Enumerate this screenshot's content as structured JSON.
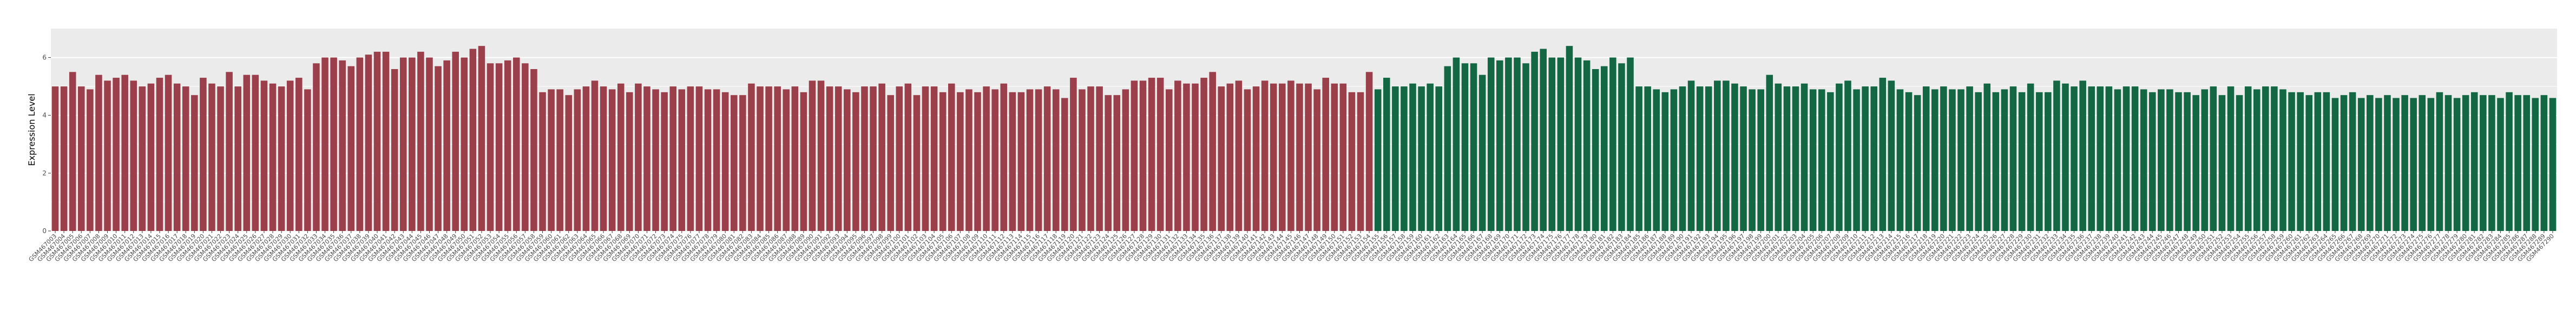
{
  "chart_data": {
    "type": "bar",
    "xlabel": "",
    "ylabel": "Expression Level",
    "ylim": [
      0,
      7
    ],
    "yticks": [
      0,
      2,
      4,
      6
    ],
    "grid": true,
    "legend": "none",
    "categories": [
      "GSM467003",
      "GSM467004",
      "GSM467005",
      "GSM467006",
      "GSM467007",
      "GSM467008",
      "GSM467009",
      "GSM467010",
      "GSM467011",
      "GSM467012",
      "GSM467013",
      "GSM467014",
      "GSM467015",
      "GSM467016",
      "GSM467017",
      "GSM467018",
      "GSM467019",
      "GSM467020",
      "GSM467021",
      "GSM467022",
      "GSM467023",
      "GSM467024",
      "GSM467025",
      "GSM467026",
      "GSM467027",
      "GSM467028",
      "GSM467029",
      "GSM467030",
      "GSM467031",
      "GSM467032",
      "GSM467033",
      "GSM467034",
      "GSM467035",
      "GSM467036",
      "GSM467037",
      "GSM467038",
      "GSM467039",
      "GSM467040",
      "GSM467041",
      "GSM467042",
      "GSM467043",
      "GSM467044",
      "GSM467045",
      "GSM467046",
      "GSM467047",
      "GSM467048",
      "GSM467049",
      "GSM467050",
      "GSM467051",
      "GSM467052",
      "GSM467053",
      "GSM467054",
      "GSM467055",
      "GSM467056",
      "GSM467057",
      "GSM467058",
      "GSM467059",
      "GSM467060",
      "GSM467061",
      "GSM467062",
      "GSM467063",
      "GSM467064",
      "GSM467065",
      "GSM467066",
      "GSM467067",
      "GSM467068",
      "GSM467069",
      "GSM467070",
      "GSM467071",
      "GSM467072",
      "GSM467073",
      "GSM467074",
      "GSM467075",
      "GSM467076",
      "GSM467077",
      "GSM467078",
      "GSM467079",
      "GSM467080",
      "GSM467081",
      "GSM467082",
      "GSM467083",
      "GSM467084",
      "GSM467085",
      "GSM467086",
      "GSM467087",
      "GSM467088",
      "GSM467089",
      "GSM467090",
      "GSM467091",
      "GSM467092",
      "GSM467093",
      "GSM467094",
      "GSM467095",
      "GSM467096",
      "GSM467097",
      "GSM467098",
      "GSM467099",
      "GSM467100",
      "GSM467101",
      "GSM467102",
      "GSM467103",
      "GSM467104",
      "GSM467105",
      "GSM467106",
      "GSM467107",
      "GSM467108",
      "GSM467109",
      "GSM467110",
      "GSM467111",
      "GSM467112",
      "GSM467113",
      "GSM467114",
      "GSM467115",
      "GSM467116",
      "GSM467117",
      "GSM467118",
      "GSM467119",
      "GSM467120",
      "GSM467121",
      "GSM467122",
      "GSM467123",
      "GSM467124",
      "GSM467125",
      "GSM467126",
      "GSM467127",
      "GSM467128",
      "GSM467129",
      "GSM467130",
      "GSM467131",
      "GSM467132",
      "GSM467133",
      "GSM467134",
      "GSM467135",
      "GSM467136",
      "GSM467137",
      "GSM467138",
      "GSM467139",
      "GSM467140",
      "GSM467141",
      "GSM467142",
      "GSM467143",
      "GSM467144",
      "GSM467145",
      "GSM467146",
      "GSM467147",
      "GSM467148",
      "GSM467149",
      "GSM467150",
      "GSM467151",
      "GSM467152",
      "GSM467153",
      "GSM467154",
      "GSM467155",
      "GSM467156",
      "GSM467157",
      "GSM467158",
      "GSM467159",
      "GSM467160",
      "GSM467161",
      "GSM467162",
      "GSM467163",
      "GSM467164",
      "GSM467165",
      "GSM467166",
      "GSM467167",
      "GSM467168",
      "GSM467169",
      "GSM467170",
      "GSM467171",
      "GSM467172",
      "GSM467173",
      "GSM467174",
      "GSM467175",
      "GSM467176",
      "GSM467177",
      "GSM467178",
      "GSM467179",
      "GSM467180",
      "GSM467181",
      "GSM467182",
      "GSM467183",
      "GSM467184",
      "GSM467185",
      "GSM467186",
      "GSM467187",
      "GSM467188",
      "GSM467189",
      "GSM467190",
      "GSM467191",
      "GSM467192",
      "GSM467193",
      "GSM467194",
      "GSM467195",
      "GSM467196",
      "GSM467197",
      "GSM467198",
      "GSM467199",
      "GSM467200",
      "GSM467201",
      "GSM467202",
      "GSM467203",
      "GSM467204",
      "GSM467205",
      "GSM467206",
      "GSM467207",
      "GSM467208",
      "GSM467209",
      "GSM467210",
      "GSM467211",
      "GSM467212",
      "GSM467213",
      "GSM467214",
      "GSM467215",
      "GSM467216",
      "GSM467217",
      "GSM467218",
      "GSM467219",
      "GSM467220",
      "GSM467221",
      "GSM467222",
      "GSM467223",
      "GSM467224",
      "GSM467225",
      "GSM467226",
      "GSM467227",
      "GSM467228",
      "GSM467229",
      "GSM467230",
      "GSM467231",
      "GSM467232",
      "GSM467233",
      "GSM467234",
      "GSM467235",
      "GSM467236",
      "GSM467237",
      "GSM467238",
      "GSM467239",
      "GSM467240",
      "GSM467241",
      "GSM467242",
      "GSM467243",
      "GSM467244",
      "GSM467245",
      "GSM467246",
      "GSM467247",
      "GSM467248",
      "GSM467249",
      "GSM467250",
      "GSM467251",
      "GSM467252",
      "GSM467253",
      "GSM467254",
      "GSM467255",
      "GSM467256",
      "GSM467257",
      "GSM467258",
      "GSM467259",
      "GSM467260",
      "GSM467261",
      "GSM467262",
      "GSM467263",
      "GSM467264",
      "GSM467265",
      "GSM467266",
      "GSM467267",
      "GSM467268",
      "GSM467269",
      "GSM467270",
      "GSM467271",
      "GSM467272",
      "GSM467273",
      "GSM467274",
      "GSM467275",
      "GSM467276",
      "GSM467277",
      "GSM467278",
      "GSM467279",
      "GSM467280",
      "GSM467281",
      "GSM467282",
      "GSM467283",
      "GSM467284",
      "GSM467285",
      "GSM467286",
      "GSM467287",
      "GSM467288",
      "GSM467289",
      "GSM467290"
    ],
    "values": [
      5.0,
      5.0,
      5.5,
      5.0,
      4.9,
      5.4,
      5.2,
      5.3,
      5.4,
      5.2,
      5.0,
      5.1,
      5.3,
      5.4,
      5.1,
      5.0,
      4.7,
      5.3,
      5.1,
      5.0,
      5.5,
      5.0,
      5.4,
      5.4,
      5.2,
      5.1,
      5.0,
      5.2,
      5.3,
      4.9,
      5.8,
      6.0,
      6.0,
      5.9,
      5.7,
      6.0,
      6.1,
      6.2,
      6.2,
      5.6,
      6.0,
      6.0,
      6.2,
      6.0,
      5.7,
      5.9,
      6.2,
      6.0,
      6.3,
      6.4,
      5.8,
      5.8,
      5.9,
      6.0,
      5.8,
      5.6,
      4.8,
      4.9,
      4.9,
      4.7,
      4.9,
      5.0,
      5.2,
      5.0,
      4.9,
      5.1,
      4.8,
      5.1,
      5.0,
      4.9,
      4.8,
      5.0,
      4.9,
      5.0,
      5.0,
      4.9,
      4.9,
      4.8,
      4.7,
      4.7,
      5.1,
      5.0,
      5.0,
      5.0,
      4.9,
      5.0,
      4.8,
      5.2,
      5.2,
      5.0,
      5.0,
      4.9,
      4.8,
      5.0,
      5.0,
      5.1,
      4.7,
      5.0,
      5.1,
      4.7,
      5.0,
      5.0,
      4.8,
      5.1,
      4.8,
      4.9,
      4.8,
      5.0,
      4.9,
      5.1,
      4.8,
      4.8,
      4.9,
      4.9,
      5.0,
      4.9,
      4.6,
      5.3,
      4.9,
      5.0,
      5.0,
      4.7,
      4.7,
      4.9,
      5.2,
      5.2,
      5.3,
      5.3,
      4.9,
      5.2,
      5.1,
      5.1,
      5.3,
      5.5,
      5.0,
      5.1,
      5.2,
      4.9,
      5.0,
      5.2,
      5.1,
      5.1,
      5.2,
      5.1,
      5.1,
      4.9,
      5.3,
      5.1,
      5.1,
      4.8,
      4.8,
      5.5,
      4.9,
      5.3,
      5.0,
      5.0,
      5.1,
      5.0,
      5.1,
      5.0,
      5.7,
      6.0,
      5.8,
      5.8,
      5.4,
      6.0,
      5.9,
      6.0,
      6.0,
      5.8,
      6.2,
      6.3,
      6.0,
      6.0,
      6.4,
      6.0,
      5.9,
      5.6,
      5.7,
      6.0,
      5.8,
      6.0,
      5.0,
      5.0,
      4.9,
      4.8,
      4.9,
      5.0,
      5.2,
      5.0,
      5.0,
      5.2,
      5.2,
      5.1,
      5.0,
      4.9,
      4.9,
      5.4,
      5.1,
      5.0,
      5.0,
      5.1,
      4.9,
      4.9,
      4.8,
      5.1,
      5.2,
      4.9,
      5.0,
      5.0,
      5.3,
      5.2,
      4.9,
      4.8,
      4.7,
      5.0,
      4.9,
      5.0,
      4.9,
      4.9,
      5.0,
      4.8,
      5.1,
      4.8,
      4.9,
      5.0,
      4.8,
      5.1,
      4.8,
      4.8,
      5.2,
      5.1,
      5.0,
      5.2,
      5.0,
      5.0,
      5.0,
      4.9,
      5.0,
      5.0,
      4.9,
      4.8,
      4.9,
      4.9,
      4.8,
      4.8,
      4.7,
      4.9,
      5.0,
      4.7,
      5.0,
      4.7,
      5.0,
      4.9,
      5.0,
      5.0,
      4.9,
      4.8,
      4.8,
      4.7,
      4.8,
      4.8,
      4.6,
      4.7,
      4.8,
      4.6,
      4.7,
      4.6,
      4.7,
      4.6,
      4.7,
      4.6,
      4.7,
      4.6,
      4.8,
      4.7,
      4.6,
      4.7,
      4.8,
      4.7,
      4.7,
      4.6,
      4.8,
      4.7,
      4.7,
      4.6,
      4.7,
      4.6
    ],
    "group_split_index": 152,
    "colors": {
      "group_a": "#9b404a",
      "group_b": "#136743",
      "panel_background": "#ebebeb",
      "gridline": "#ffffff"
    }
  }
}
